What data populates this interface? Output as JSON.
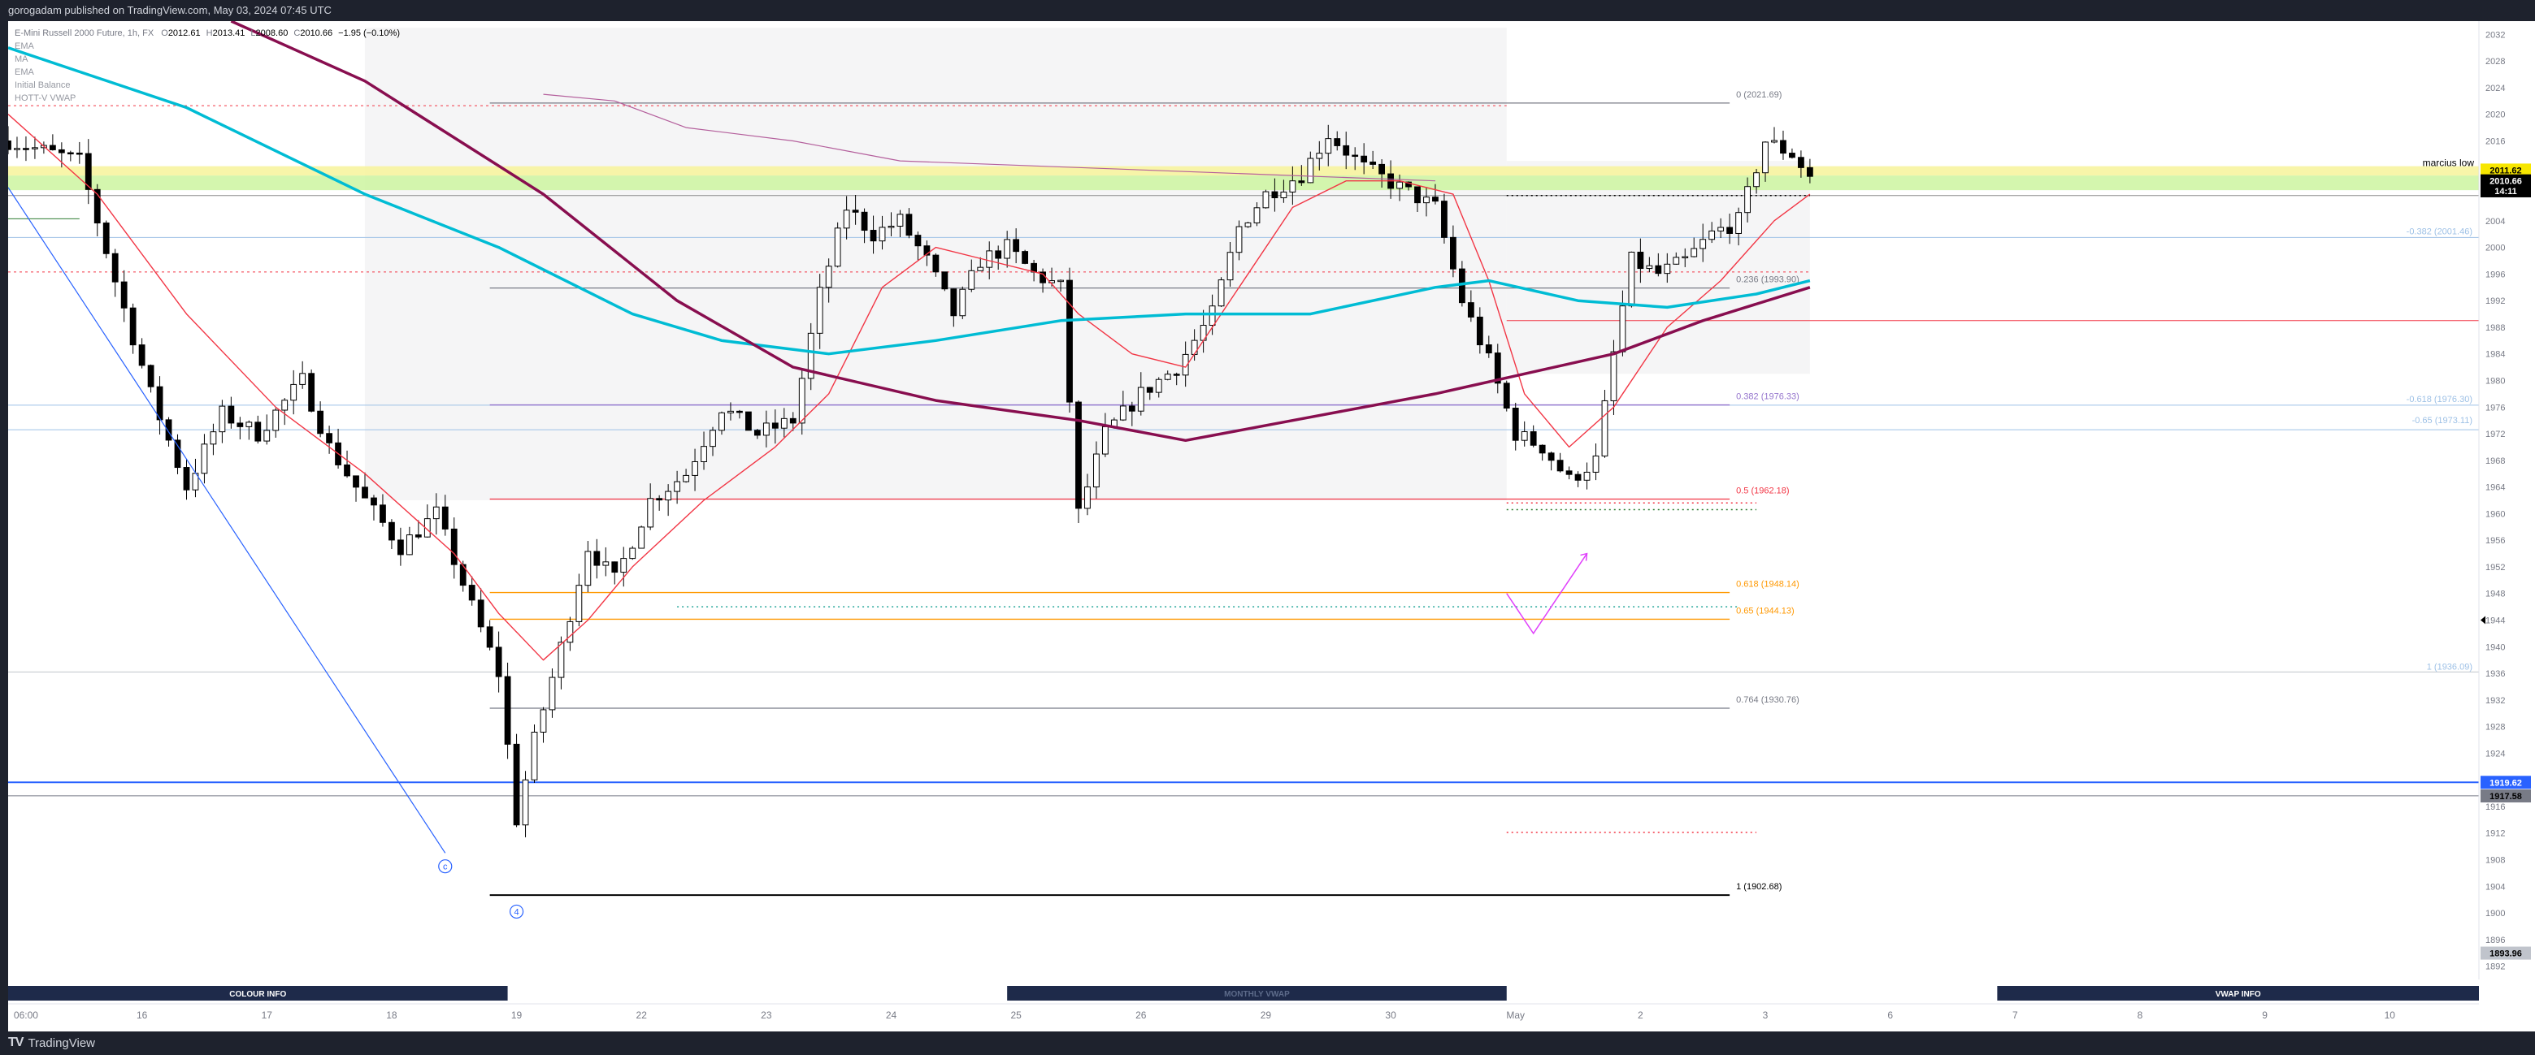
{
  "header": {
    "published": "gorogadam published on TradingView.com, May 03, 2024 07:45 UTC"
  },
  "footer": {
    "logo_mark": "TV",
    "logo_text": "TradingView"
  },
  "colors": {
    "background": "#ffffff",
    "frame": "#1e222d",
    "candle_up": "#ffffff",
    "candle_down": "#000000",
    "ema_fast": "#f23645",
    "ema_teal": "#00bcd4",
    "ma_purple": "#880e4f",
    "vwap_band": "#9c27b0",
    "fib_line": "#787b86",
    "price_label": "#000000",
    "highlight_band": "#ccf5a0",
    "yellow_band": "#f7f39a"
  },
  "chart_data": {
    "type": "candlestick",
    "symbol_line": {
      "name": "E-Mini Russell 2000 Future, 1h, FX",
      "open": "2012.61",
      "high": "2013.41",
      "low": "2008.60",
      "close": "2010.66",
      "change": "−1.95 (−0.10%)"
    },
    "indicator_labels": [
      "EMA",
      "MA",
      "EMA",
      "Initial Balance",
      "HOTT-V VWAP"
    ],
    "ylim": [
      1890,
      2034
    ],
    "y_ticks": [
      1892,
      1896,
      1900,
      1904,
      1908,
      1912,
      1916,
      1920,
      1924,
      1928,
      1932,
      1936,
      1940,
      1944,
      1948,
      1952,
      1956,
      1960,
      1964,
      1968,
      1972,
      1976,
      1980,
      1984,
      1988,
      1992,
      1996,
      2000,
      2004,
      2008,
      2012,
      2016,
      2020,
      2024,
      2028,
      2032
    ],
    "x_ticks": [
      {
        "label": "06:00",
        "i": 2
      },
      {
        "label": "16",
        "i": 15
      },
      {
        "label": "17",
        "i": 29
      },
      {
        "label": "18",
        "i": 43
      },
      {
        "label": "19",
        "i": 57
      },
      {
        "label": "22",
        "i": 71
      },
      {
        "label": "23",
        "i": 85
      },
      {
        "label": "24",
        "i": 99
      },
      {
        "label": "25",
        "i": 113
      },
      {
        "label": "26",
        "i": 127
      },
      {
        "label": "29",
        "i": 141
      },
      {
        "label": "30",
        "i": 155
      },
      {
        "label": "May",
        "i": 169
      },
      {
        "label": "2",
        "i": 183
      },
      {
        "label": "3",
        "i": 197
      },
      {
        "label": "6",
        "i": 211
      },
      {
        "label": "7",
        "i": 225
      },
      {
        "label": "8",
        "i": 239
      },
      {
        "label": "9",
        "i": 253
      },
      {
        "label": "10",
        "i": 267
      }
    ],
    "x_index_range": [
      0,
      277
    ],
    "price_path": [
      [
        0,
        2016
      ],
      [
        8,
        2013
      ],
      [
        12,
        1995
      ],
      [
        16,
        1978
      ],
      [
        20,
        1964
      ],
      [
        24,
        1975
      ],
      [
        28,
        1972
      ],
      [
        33,
        1980
      ],
      [
        36,
        1970
      ],
      [
        40,
        1962
      ],
      [
        44,
        1955
      ],
      [
        48,
        1960
      ],
      [
        52,
        1946
      ],
      [
        55,
        1936
      ],
      [
        57,
        1914
      ],
      [
        59,
        1926
      ],
      [
        62,
        1940
      ],
      [
        65,
        1955
      ],
      [
        68,
        1950
      ],
      [
        72,
        1962
      ],
      [
        76,
        1966
      ],
      [
        80,
        1976
      ],
      [
        84,
        1972
      ],
      [
        88,
        1974
      ],
      [
        91,
        1993
      ],
      [
        94,
        2006
      ],
      [
        97,
        2002
      ],
      [
        100,
        2004
      ],
      [
        103,
        1998
      ],
      [
        106,
        1990
      ],
      [
        109,
        1998
      ],
      [
        112,
        2000
      ],
      [
        115,
        1996
      ],
      [
        118,
        1994
      ],
      [
        120,
        1960
      ],
      [
        123,
        1972
      ],
      [
        127,
        1978
      ],
      [
        131,
        1982
      ],
      [
        135,
        1990
      ],
      [
        138,
        2003
      ],
      [
        141,
        2008
      ],
      [
        145,
        2011
      ],
      [
        148,
        2017
      ],
      [
        152,
        2012
      ],
      [
        156,
        2009
      ],
      [
        160,
        2006
      ],
      [
        163,
        1992
      ],
      [
        166,
        1983
      ],
      [
        169,
        1972
      ],
      [
        172,
        1970
      ],
      [
        175,
        1965
      ],
      [
        178,
        1968
      ],
      [
        180,
        1984
      ],
      [
        182,
        1998
      ],
      [
        185,
        1996
      ],
      [
        188,
        1998
      ],
      [
        191,
        2002
      ],
      [
        194,
        2004
      ],
      [
        197,
        2016
      ],
      [
        200,
        2014
      ],
      [
        202,
        2010.66
      ]
    ],
    "series": [
      {
        "name": "EMA",
        "kind": "ema_fast",
        "color": "#f23645",
        "points": [
          [
            0,
            2020
          ],
          [
            10,
            2008
          ],
          [
            20,
            1990
          ],
          [
            30,
            1976
          ],
          [
            40,
            1966
          ],
          [
            50,
            1954
          ],
          [
            55,
            1945
          ],
          [
            60,
            1938
          ],
          [
            65,
            1944
          ],
          [
            70,
            1952
          ],
          [
            78,
            1962
          ],
          [
            86,
            1970
          ],
          [
            92,
            1978
          ],
          [
            98,
            1994
          ],
          [
            104,
            2000
          ],
          [
            110,
            1998
          ],
          [
            116,
            1996
          ],
          [
            120,
            1990
          ],
          [
            126,
            1984
          ],
          [
            132,
            1982
          ],
          [
            138,
            1994
          ],
          [
            144,
            2006
          ],
          [
            150,
            2010
          ],
          [
            156,
            2010
          ],
          [
            162,
            2008
          ],
          [
            166,
            1995
          ],
          [
            170,
            1978
          ],
          [
            175,
            1970
          ],
          [
            180,
            1976
          ],
          [
            186,
            1988
          ],
          [
            192,
            1995
          ],
          [
            198,
            2004
          ],
          [
            202,
            2008
          ]
        ]
      },
      {
        "name": "EMA",
        "kind": "ema_teal",
        "color": "#00bcd4",
        "points": [
          [
            0,
            2030
          ],
          [
            20,
            2021
          ],
          [
            40,
            2008
          ],
          [
            55,
            2000
          ],
          [
            70,
            1990
          ],
          [
            80,
            1986
          ],
          [
            92,
            1984
          ],
          [
            104,
            1986
          ],
          [
            118,
            1989
          ],
          [
            132,
            1990
          ],
          [
            146,
            1990
          ],
          [
            160,
            1994
          ],
          [
            166,
            1995
          ],
          [
            176,
            1992
          ],
          [
            186,
            1991
          ],
          [
            196,
            1993
          ],
          [
            202,
            1995
          ]
        ]
      },
      {
        "name": "MA",
        "kind": "ma_purple",
        "color": "#880e4f",
        "points": [
          [
            25,
            2034
          ],
          [
            40,
            2025
          ],
          [
            60,
            2008
          ],
          [
            75,
            1992
          ],
          [
            88,
            1982
          ],
          [
            104,
            1977
          ],
          [
            120,
            1974
          ],
          [
            132,
            1971
          ],
          [
            144,
            1974
          ],
          [
            160,
            1978
          ],
          [
            170,
            1981
          ],
          [
            180,
            1984
          ],
          [
            190,
            1989
          ],
          [
            202,
            1994
          ]
        ]
      },
      {
        "name": "HOTT-V VWAP",
        "kind": "vwap_band",
        "color": "#b45f9c",
        "points": [
          [
            60,
            2023
          ],
          [
            68,
            2022
          ],
          [
            76,
            2018
          ],
          [
            88,
            2016
          ],
          [
            100,
            2013
          ],
          [
            120,
            2012
          ],
          [
            140,
            2011
          ],
          [
            160,
            2010
          ]
        ]
      }
    ],
    "shaded_zones": [
      {
        "x0": 40,
        "x1": 168,
        "y0": 1962,
        "y1": 2033
      },
      {
        "x0": 168,
        "x1": 202,
        "y0": 1981,
        "y1": 2013
      }
    ],
    "horizontal_bands": [
      {
        "y0": 2008.6,
        "y1": 2010.8,
        "color": "#ccf5a0"
      },
      {
        "y0": 2010.8,
        "y1": 2012.2,
        "color": "#f7f39a"
      }
    ],
    "horizontal_lines": [
      {
        "y": 2021.3,
        "x0": 0,
        "x1": 168,
        "color": "#f23645",
        "dash": true
      },
      {
        "y": 1996.3,
        "x0": 0,
        "x1": 202,
        "color": "#f23645",
        "dash": true
      },
      {
        "y": 2001.5,
        "x0": 0,
        "x1": 277,
        "color": "#9ec1e6"
      },
      {
        "y": 1976.3,
        "x0": 0,
        "x1": 277,
        "color": "#9ec1e6"
      },
      {
        "y": 1972.6,
        "x0": 0,
        "x1": 277,
        "color": "#9ec1e6"
      },
      {
        "y": 1936.2,
        "x0": 0,
        "x1": 277,
        "color": "#c0c4cc"
      },
      {
        "y": 1919.62,
        "x0": 0,
        "x1": 277,
        "color": "#2962ff"
      },
      {
        "y": 1917.6,
        "x0": 0,
        "x1": 277,
        "color": "#787b86"
      },
      {
        "y": 1989,
        "x0": 168,
        "x1": 277,
        "color": "#f23645"
      },
      {
        "y": 2007.8,
        "x0": 0,
        "x1": 277,
        "color": "#888888"
      },
      {
        "y": 2004.3,
        "x0": 0,
        "x1": 8,
        "color": "#2e7d32"
      }
    ],
    "fib_levels": [
      {
        "label": "0 (2021.69)",
        "y": 2021.69,
        "color": "#787b86"
      },
      {
        "label": "0.236 (1993.90)",
        "y": 1993.9,
        "color": "#787b86"
      },
      {
        "label": "0.382 (1976.33)",
        "y": 1976.33,
        "color": "#9575cd"
      },
      {
        "label": "0.5 (1962.18)",
        "y": 1962.18,
        "color": "#f23645"
      },
      {
        "label": "0.618 (1948.14)",
        "y": 1948.14,
        "color": "#ff9800"
      },
      {
        "label": "0.65 (1944.13)",
        "y": 1944.13,
        "color": "#ff9800"
      },
      {
        "label": "0.764 (1930.76)",
        "y": 1930.76,
        "color": "#787b86"
      },
      {
        "label": "1 (1902.68)",
        "y": 1902.68,
        "color": "#000000"
      }
    ],
    "fib_range": [
      54,
      193
    ],
    "right_labels": [
      {
        "label": "-0.382 (2001.46)",
        "y": 2001.46,
        "color": "#9ec1e6"
      },
      {
        "label": "-0.618 (1976.30)",
        "y": 1976.3,
        "color": "#9ec1e6"
      },
      {
        "label": "-0.65 (1973.11)",
        "y": 1973.11,
        "color": "#9ec1e6"
      },
      {
        "label": "1 (1936.09)",
        "y": 1936.09,
        "color": "#9ec1e6"
      }
    ],
    "dotted_lines": [
      {
        "y": 2007.8,
        "x0": 168,
        "x1": 202,
        "color": "#000000"
      },
      {
        "y": 1960.6,
        "x0": 168,
        "x1": 196,
        "color": "#2e7d32"
      },
      {
        "y": 1961.6,
        "x0": 168,
        "x1": 196,
        "color": "#f23645"
      },
      {
        "y": 1946.0,
        "x0": 75,
        "x1": 194,
        "color": "#26a69a"
      },
      {
        "y": 1912.1,
        "x0": 168,
        "x1": 196,
        "color": "#f23645"
      }
    ],
    "price_tags": [
      {
        "label": "2011.62",
        "y": 2011.62,
        "bg": "#f7e600",
        "fg": "#000000"
      },
      {
        "label": "2010.66",
        "y": 2010.0,
        "bg": "#000000",
        "fg": "#ffffff"
      },
      {
        "label": "14:11",
        "y": 2008.5,
        "bg": "#000000",
        "fg": "#ffffff"
      },
      {
        "label": "1919.62",
        "y": 1919.62,
        "bg": "#2962ff",
        "fg": "#ffffff"
      },
      {
        "label": "1917.58",
        "y": 1917.58,
        "bg": "#787b86",
        "fg": "#000000"
      },
      {
        "label": "1893.96",
        "y": 1893.96,
        "bg": "#c0c4cc",
        "fg": "#000000"
      }
    ],
    "annotations": [
      {
        "text": "marcius low",
        "y": 2012.0
      },
      {
        "text": "4",
        "i": 57,
        "y": 1900.2,
        "circle": true,
        "color": "#2962ff"
      },
      {
        "text": "c",
        "i": 49,
        "y": 1907.0,
        "circle": true,
        "color": "#2962ff"
      }
    ],
    "trendline": {
      "points": [
        [
          0,
          2009
        ],
        [
          49,
          1909
        ]
      ],
      "color": "#2962ff"
    },
    "arrow_path": {
      "points": [
        [
          168,
          1948
        ],
        [
          171,
          1942
        ],
        [
          177,
          1954
        ]
      ],
      "color": "#e040fb"
    },
    "info_boxes": [
      {
        "label": "COLOUR INFO",
        "x0": 0,
        "x1": 56
      },
      {
        "label": "MONTHLY VWAP",
        "x0": 112,
        "x1": 168
      },
      {
        "label": "VWAP INFO",
        "x0": 223,
        "x1": 279
      }
    ]
  }
}
